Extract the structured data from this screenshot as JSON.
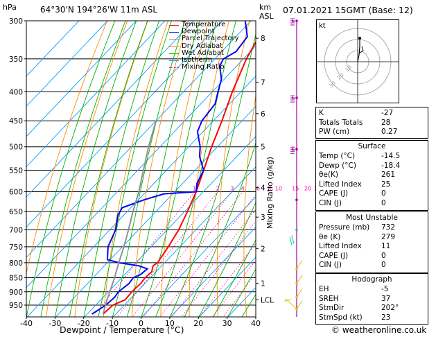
{
  "header": {
    "location": "64°30'N  194°26'W  11m  ASL",
    "pressure_unit": "hPa",
    "height_unit_line1": "km",
    "height_unit_line2": "ASL",
    "datetime": "07.01.2021  15GMT  (Base: 12)"
  },
  "legend": [
    {
      "label": "Temperature",
      "color": "#ff0000",
      "style": "solid"
    },
    {
      "label": "Dewpoint",
      "color": "#0000ff",
      "style": "solid"
    },
    {
      "label": "Parcel Trajectory",
      "color": "#909090",
      "style": "solid"
    },
    {
      "label": "Dry Adiabat",
      "color": "#ff8c00",
      "style": "solid"
    },
    {
      "label": "Wet Adiabat",
      "color": "#00b000",
      "style": "solid"
    },
    {
      "label": "Isotherm",
      "color": "#00a0ff",
      "style": "solid"
    },
    {
      "label": "Mixing Ratio",
      "color": "#ff00a0",
      "style": "dotted"
    }
  ],
  "chart_data": {
    "type": "line",
    "subtype": "skew-T log-P diagram",
    "xlabel": "Dewpoint / Temperature (°C)",
    "ylabel": "hPa",
    "y2label": "Mixing Ratio (g/kg)",
    "xlim": [
      -40,
      40
    ],
    "ylim": [
      300,
      1000
    ],
    "y_scale": "log",
    "x_ticks": [
      -40,
      -30,
      -20,
      -10,
      0,
      10,
      20,
      30,
      40
    ],
    "pressure_ticks": [
      300,
      350,
      400,
      450,
      500,
      550,
      600,
      650,
      700,
      750,
      800,
      850,
      900,
      950
    ],
    "km_ticks": [
      {
        "label": "8",
        "p": 322
      },
      {
        "label": "7",
        "p": 385
      },
      {
        "label": "6",
        "p": 437
      },
      {
        "label": "5",
        "p": 500
      },
      {
        "label": "4",
        "p": 590
      },
      {
        "label": "3",
        "p": 665
      },
      {
        "label": "2",
        "p": 755
      },
      {
        "label": "1",
        "p": 870
      },
      {
        "label": "LCL",
        "p": 930
      }
    ],
    "mixing_ratio_labels": [
      {
        "label": "1",
        "value": 1
      },
      {
        "label": "2",
        "value": 2
      },
      {
        "label": "3",
        "value": 3
      },
      {
        "label": "4",
        "value": 4
      },
      {
        "label": "6",
        "value": 6
      },
      {
        "label": "8",
        "value": 8
      },
      {
        "label": "10",
        "value": 10
      },
      {
        "label": "15",
        "value": 15
      },
      {
        "label": "20",
        "value": 20
      },
      {
        "label": "25",
        "value": 25
      }
    ],
    "series": [
      {
        "name": "Temperature",
        "color": "#ff0000",
        "points": [
          [
            985,
            -14.5
          ],
          [
            950,
            -14
          ],
          [
            930,
            -11.5
          ],
          [
            900,
            -11.8
          ],
          [
            870,
            -11.5
          ],
          [
            850,
            -11.8
          ],
          [
            830,
            -11.5
          ],
          [
            810,
            -13
          ],
          [
            800,
            -12.5
          ],
          [
            750,
            -14
          ],
          [
            700,
            -16
          ],
          [
            650,
            -19
          ],
          [
            600,
            -22.5
          ],
          [
            550,
            -27
          ],
          [
            500,
            -32
          ],
          [
            450,
            -37
          ],
          [
            400,
            -43
          ],
          [
            350,
            -49
          ],
          [
            320,
            -52
          ],
          [
            300,
            -55
          ]
        ]
      },
      {
        "name": "Dewpoint",
        "color": "#0000ff",
        "points": [
          [
            985,
            -18.4
          ],
          [
            970,
            -17.5
          ],
          [
            950,
            -16.5
          ],
          [
            920,
            -16
          ],
          [
            900,
            -16.5
          ],
          [
            870,
            -15.5
          ],
          [
            850,
            -16
          ],
          [
            840,
            -14.5
          ],
          [
            820,
            -14
          ],
          [
            810,
            -18
          ],
          [
            800,
            -26
          ],
          [
            790,
            -31
          ],
          [
            750,
            -35
          ],
          [
            700,
            -38
          ],
          [
            660,
            -42
          ],
          [
            640,
            -43
          ],
          [
            620,
            -38
          ],
          [
            605,
            -33
          ],
          [
            600,
            -22.5
          ],
          [
            580,
            -25
          ],
          [
            550,
            -27
          ],
          [
            520,
            -33
          ],
          [
            500,
            -36
          ],
          [
            470,
            -42
          ],
          [
            450,
            -44
          ],
          [
            420,
            -45
          ],
          [
            400,
            -48
          ],
          [
            380,
            -51
          ],
          [
            360,
            -56
          ],
          [
            350,
            -57
          ],
          [
            340,
            -55
          ],
          [
            320,
            -56
          ],
          [
            300,
            -62
          ]
        ]
      },
      {
        "name": "Parcel Trajectory",
        "color": "#909090",
        "points": [
          [
            985,
            -14.5
          ],
          [
            930,
            -17.8
          ],
          [
            900,
            -19.5
          ],
          [
            850,
            -22.5
          ],
          [
            800,
            -26
          ],
          [
            750,
            -29.5
          ],
          [
            700,
            -33.5
          ],
          [
            650,
            -38
          ],
          [
            600,
            -42.5
          ],
          [
            550,
            -48
          ],
          [
            500,
            -54
          ],
          [
            450,
            -60
          ]
        ]
      }
    ]
  },
  "hodograph": {
    "unit_label": "kt",
    "ring_labels": [
      "10",
      "20",
      "30"
    ]
  },
  "indices": {
    "rows": [
      {
        "label": "K",
        "value": "-27"
      },
      {
        "label": "Totals Totals",
        "value": "28"
      },
      {
        "label": "PW (cm)",
        "value": "0.27"
      }
    ]
  },
  "surface": {
    "title": "Surface",
    "rows": [
      {
        "label": "Temp (°C)",
        "value": "-14.5"
      },
      {
        "label": "Dewp (°C)",
        "value": "-18.4"
      },
      {
        "label": "θe(K)",
        "value": "261"
      },
      {
        "label": "Lifted Index",
        "value": "25"
      },
      {
        "label": "CAPE (J)",
        "value": "0"
      },
      {
        "label": "CIN (J)",
        "value": "0"
      }
    ]
  },
  "most_unstable": {
    "title": "Most Unstable",
    "rows": [
      {
        "label": "Pressure (mb)",
        "value": "732"
      },
      {
        "label": "θe (K)",
        "value": "279"
      },
      {
        "label": "Lifted Index",
        "value": "11"
      },
      {
        "label": "CAPE (J)",
        "value": "0"
      },
      {
        "label": "CIN (J)",
        "value": "0"
      }
    ]
  },
  "hodograph_table": {
    "title": "Hodograph",
    "rows": [
      {
        "label": "EH",
        "value": "-5"
      },
      {
        "label": "SREH",
        "value": "37"
      },
      {
        "label": "StmDir",
        "value": "202°"
      },
      {
        "label": "StmSpd (kt)",
        "value": "23"
      }
    ]
  },
  "footer": {
    "copyright": "© weatheronline.co.uk"
  },
  "colors": {
    "temperature": "#ff0000",
    "dewpoint": "#0000ff",
    "parcel": "#909090",
    "dry_adiabat": "#ff8c00",
    "wet_adiabat": "#00b000",
    "isotherm": "#00a0ff",
    "mixing_ratio": "#ff00a0",
    "wind_profile": "#a000a0"
  }
}
